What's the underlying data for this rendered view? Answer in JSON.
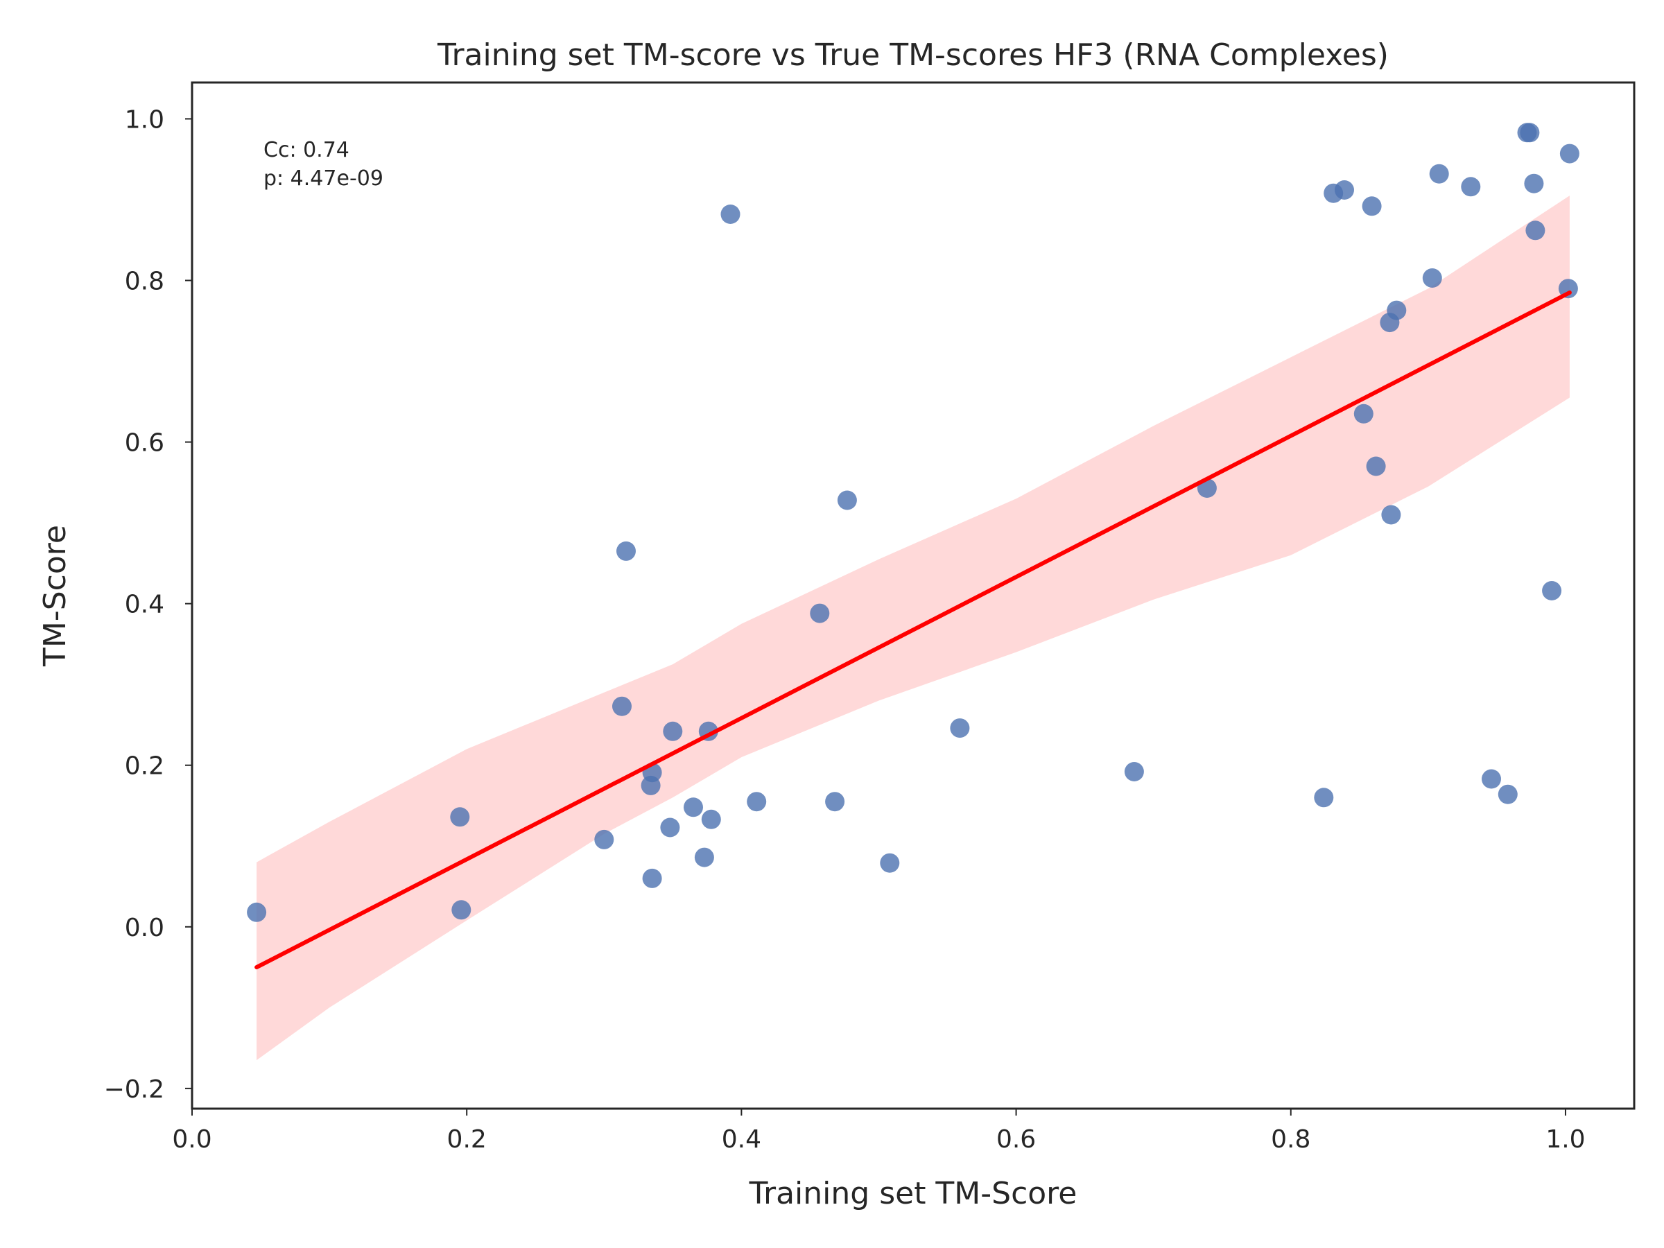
{
  "chart_data": {
    "type": "scatter",
    "title": "Training set TM-score vs True TM-scores HF3 (RNA Complexes)",
    "xlabel": "Training set TM-Score",
    "ylabel": "TM-Score",
    "xlim": [
      0.0,
      1.05
    ],
    "ylim": [
      -0.225,
      1.045
    ],
    "xticks": [
      {
        "value": 0.0,
        "label": "0.0"
      },
      {
        "value": 0.2,
        "label": "0.2"
      },
      {
        "value": 0.4,
        "label": "0.4"
      },
      {
        "value": 0.6,
        "label": "0.6"
      },
      {
        "value": 0.8,
        "label": "0.8"
      },
      {
        "value": 1.0,
        "label": "1.0"
      }
    ],
    "yticks": [
      {
        "value": -0.2,
        "label": "−0.2"
      },
      {
        "value": 0.0,
        "label": "0.0"
      },
      {
        "value": 0.2,
        "label": "0.2"
      },
      {
        "value": 0.4,
        "label": "0.4"
      },
      {
        "value": 0.6,
        "label": "0.6"
      },
      {
        "value": 0.8,
        "label": "0.8"
      },
      {
        "value": 1.0,
        "label": "1.0"
      }
    ],
    "grid": false,
    "annotations": [
      "Cc: 0.74",
      "p: 4.47e-09"
    ],
    "points": [
      [
        0.047,
        0.018
      ],
      [
        0.195,
        0.136
      ],
      [
        0.196,
        0.021
      ],
      [
        0.3,
        0.108
      ],
      [
        0.313,
        0.273
      ],
      [
        0.316,
        0.465
      ],
      [
        0.335,
        0.06
      ],
      [
        0.335,
        0.191
      ],
      [
        0.334,
        0.175
      ],
      [
        0.348,
        0.123
      ],
      [
        0.35,
        0.242
      ],
      [
        0.365,
        0.148
      ],
      [
        0.373,
        0.086
      ],
      [
        0.376,
        0.242
      ],
      [
        0.378,
        0.133
      ],
      [
        0.392,
        0.882
      ],
      [
        0.411,
        0.155
      ],
      [
        0.457,
        0.388
      ],
      [
        0.468,
        0.155
      ],
      [
        0.477,
        0.528
      ],
      [
        0.508,
        0.079
      ],
      [
        0.559,
        0.246
      ],
      [
        0.686,
        0.192
      ],
      [
        0.739,
        0.543
      ],
      [
        0.824,
        0.16
      ],
      [
        0.831,
        0.908
      ],
      [
        0.839,
        0.912
      ],
      [
        0.853,
        0.635
      ],
      [
        0.859,
        0.892
      ],
      [
        0.862,
        0.57
      ],
      [
        0.872,
        0.748
      ],
      [
        0.873,
        0.51
      ],
      [
        0.877,
        0.763
      ],
      [
        0.903,
        0.803
      ],
      [
        0.908,
        0.932
      ],
      [
        0.931,
        0.916
      ],
      [
        0.946,
        0.183
      ],
      [
        0.958,
        0.164
      ],
      [
        0.972,
        0.983
      ],
      [
        0.974,
        0.983
      ],
      [
        0.977,
        0.92
      ],
      [
        0.978,
        0.862
      ],
      [
        0.99,
        0.416
      ],
      [
        1.002,
        0.79
      ],
      [
        1.003,
        0.957
      ]
    ],
    "regression": {
      "x": [
        0.047,
        1.003
      ],
      "y": [
        -0.05,
        0.785
      ]
    },
    "confidence_band": {
      "x": [
        0.047,
        0.1,
        0.2,
        0.3,
        0.35,
        0.4,
        0.5,
        0.6,
        0.7,
        0.8,
        0.9,
        1.003
      ],
      "lower": [
        -0.165,
        -0.1,
        0.008,
        0.115,
        0.16,
        0.21,
        0.28,
        0.34,
        0.405,
        0.46,
        0.545,
        0.655
      ],
      "upper": [
        0.08,
        0.13,
        0.22,
        0.29,
        0.325,
        0.375,
        0.455,
        0.53,
        0.62,
        0.705,
        0.79,
        0.905
      ]
    },
    "colors": {
      "points": "#4c72b0",
      "regression_line": "#ff0000",
      "confidence_band": "#ffd5d5",
      "axes": "#262626",
      "background": "#ffffff"
    }
  }
}
